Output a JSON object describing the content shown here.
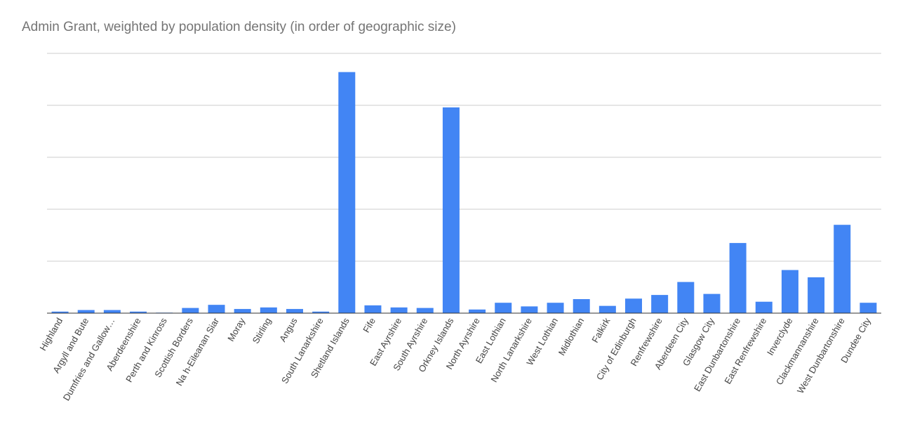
{
  "chart_data": {
    "type": "bar",
    "title": "Admin Grant, weighted by population density (in order of geographic size)",
    "xlabel": "",
    "ylabel": "",
    "grid": true,
    "y_axis_labels": "none",
    "ylim": [
      0,
      5
    ],
    "color": "#4285f4",
    "categories": [
      "Highland",
      "Argyll and Bute",
      "Dumfries and Gallow…",
      "Aberdeenshire",
      "Perth and Kinross",
      "Scottish Borders",
      "Na h-Eileanan Siar",
      "Moray",
      "Stirling",
      "Angus",
      "South Lanarkshire",
      "Shetland Islands",
      "Fife",
      "East Ayrshire",
      "South Ayrshire",
      "Orkney Islands",
      "North Ayrshire",
      "East Lothian",
      "North Lanarkshire",
      "West Lothian",
      "Midlothian",
      "Falkirk",
      "City of Edinburgh",
      "Renfrewshire",
      "Aberdeen City",
      "Glasgow City",
      "East Dunbartonshire",
      "East Renfrewshire",
      "Inverclyde",
      "Clackmannanshire",
      "West Dunbartonshire",
      "Dundee City"
    ],
    "values": [
      0.03,
      0.06,
      0.06,
      0.03,
      0.01,
      0.1,
      0.16,
      0.08,
      0.11,
      0.08,
      0.03,
      4.64,
      0.15,
      0.11,
      0.1,
      3.96,
      0.07,
      0.2,
      0.13,
      0.2,
      0.27,
      0.14,
      0.28,
      0.35,
      0.6,
      0.37,
      1.35,
      0.22,
      0.83,
      0.69,
      1.7,
      0.2
    ]
  }
}
